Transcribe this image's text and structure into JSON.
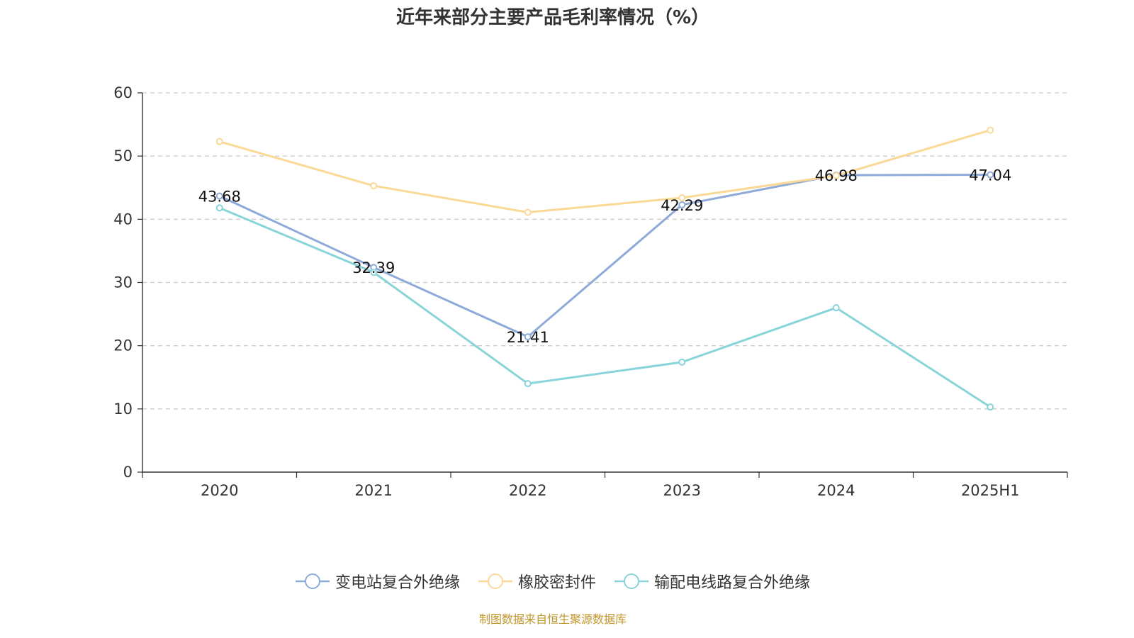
{
  "chart_data": {
    "type": "line",
    "title": "近年来部分主要产品毛利率情况（%）",
    "categories": [
      "2020",
      "2021",
      "2022",
      "2023",
      "2024",
      "2025H1"
    ],
    "ylim": [
      0,
      60
    ],
    "yticks": [
      0,
      10,
      20,
      30,
      40,
      50,
      60
    ],
    "grid": true,
    "legend_position": "bottom",
    "series": [
      {
        "name": "变电站复合外绝缘",
        "color": "#8eaad8",
        "values": [
          43.68,
          32.39,
          21.41,
          42.29,
          46.98,
          47.04
        ],
        "labels": [
          "43.68",
          "32.39",
          "21.41",
          "42.29",
          "46.98",
          "47.04"
        ]
      },
      {
        "name": "橡胶密封件",
        "color": "#fad996",
        "values": [
          52.3,
          45.3,
          41.1,
          43.4,
          46.9,
          54.1
        ]
      },
      {
        "name": "输配电线路复合外绝缘",
        "color": "#88d4d8",
        "values": [
          41.8,
          31.6,
          14.0,
          17.4,
          26.0,
          10.3
        ]
      }
    ]
  },
  "source": "制图数据来自恒生聚源数据库"
}
